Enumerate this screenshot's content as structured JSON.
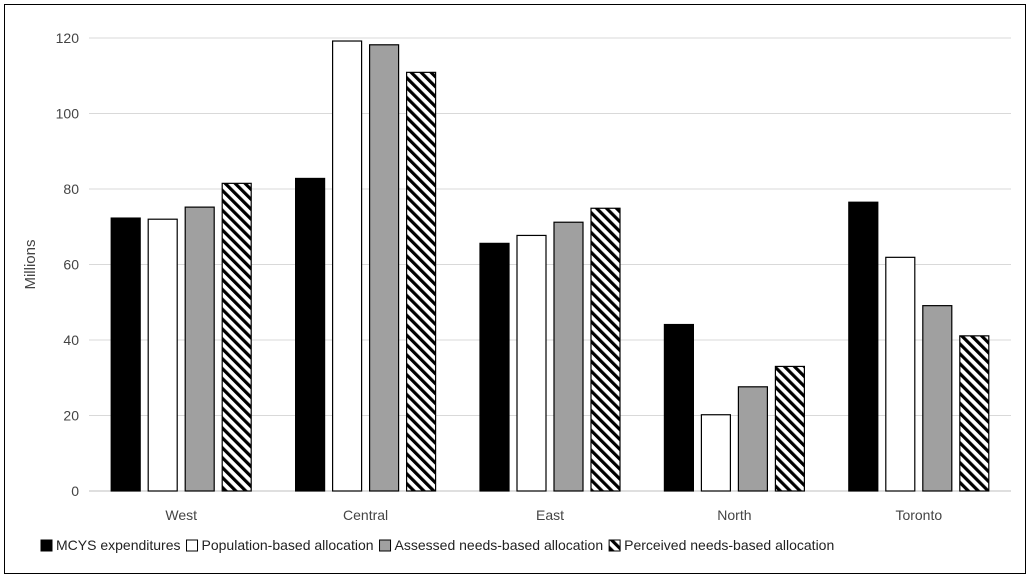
{
  "chart_data": {
    "type": "bar",
    "title": "",
    "xlabel": "",
    "ylabel": "Millions",
    "ylim": [
      0,
      120
    ],
    "yticks": [
      0,
      20,
      40,
      60,
      80,
      100,
      120
    ],
    "grid": true,
    "legend_position": "bottom",
    "categories": [
      "West",
      "Central",
      "East",
      "North",
      "Toronto"
    ],
    "series": [
      {
        "name": "MCYS expenditures",
        "pattern": "solid-black",
        "values": [
          72.3,
          82.8,
          65.6,
          44.1,
          76.5
        ]
      },
      {
        "name": "Population-based allocation",
        "pattern": "white",
        "values": [
          72.0,
          119.2,
          67.7,
          20.2,
          61.9
        ]
      },
      {
        "name": "Assessed needs-based allocation",
        "pattern": "solid-gray",
        "values": [
          75.2,
          118.2,
          71.2,
          27.6,
          49.1
        ]
      },
      {
        "name": "Perceived needs-based allocation",
        "pattern": "diagonal-hatch",
        "values": [
          81.5,
          110.9,
          74.9,
          33.0,
          41.1
        ]
      }
    ]
  },
  "colors": {
    "black": "#000000",
    "white": "#ffffff",
    "gray": "#a0a0a0",
    "grid": "#d9d9d9"
  }
}
